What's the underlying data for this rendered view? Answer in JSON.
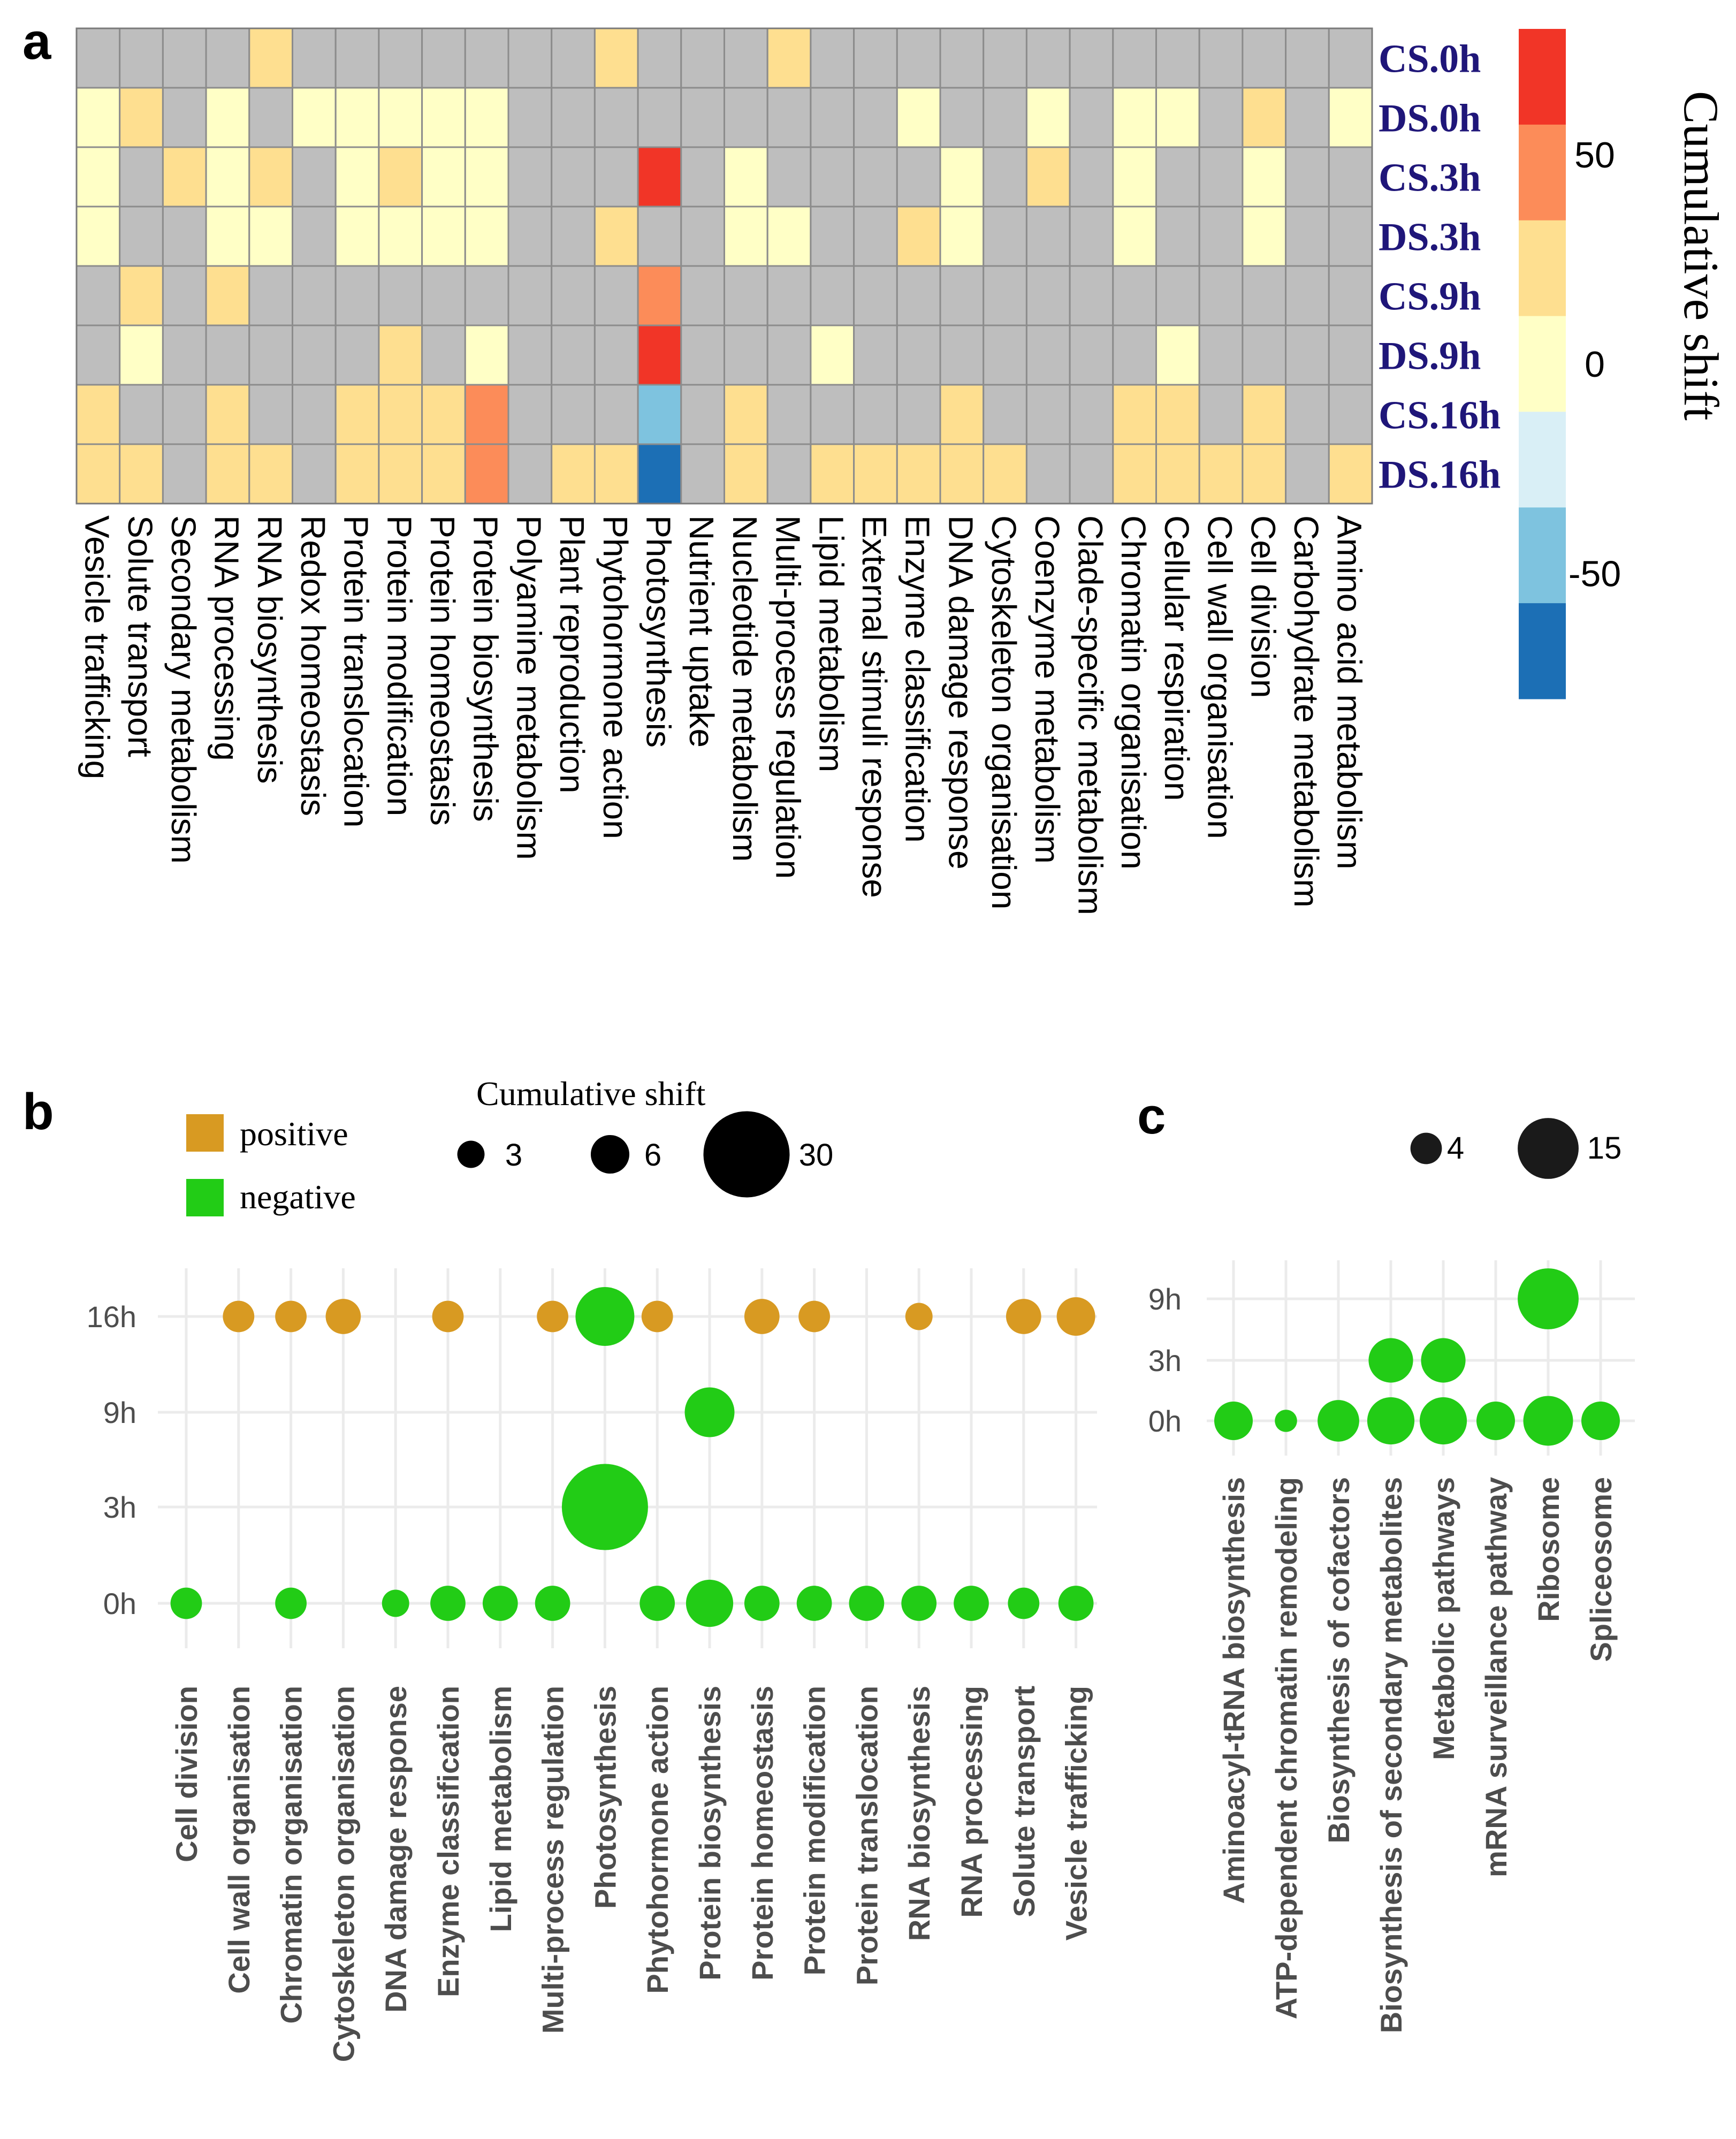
{
  "panels": {
    "a": "a",
    "b": "b",
    "c": "c"
  },
  "colors": {
    "grey": "#BEBEBE",
    "pos1": "#FFFFC6",
    "pos2": "#FEDF90",
    "pos3": "#FC8C59",
    "pos4": "#F13527",
    "neg1": "#D9EFF6",
    "neg2": "#7EC3DF",
    "neg3": "#1C6FB5",
    "positive": "#D89A22",
    "negative": "#22CC16",
    "row_label": "#1F1679",
    "grid": "#EBEBEB"
  },
  "chart_data": [
    {
      "id": "a",
      "type": "heatmap",
      "rows": [
        "CS.0h",
        "DS.0h",
        "CS.3h",
        "DS.3h",
        "CS.9h",
        "DS.9h",
        "CS.16h",
        "DS.16h"
      ],
      "columns": [
        "Vesicle trafficking",
        "Solute transport",
        "Secondary metabolism",
        "RNA processing",
        "RNA biosynthesis",
        "Redox homeostasis",
        "Protein translocation",
        "Protein modification",
        "Protein homeostasis",
        "Protein biosynthesis",
        "Polyamine metabolism",
        "Plant reproduction",
        "Phytohormone action",
        "Photosynthesis",
        "Nutrient uptake",
        "Nucleotide metabolism",
        "Multi-process regulation",
        "Lipid metabolism",
        "External stimuli response",
        "Enzyme classification",
        "DNA damage response",
        "Cytoskeleton organisation",
        "Coenzyme metabolism",
        "Clade-specific metabolism",
        "Chromatin organisation",
        "Cellular respiration",
        "Cell wall organisation",
        "Cell division",
        "Carbohydrate metabolism",
        "Amino acid metabolism"
      ],
      "value_bins": "0 = no value (grey); 1 = 0 to 20; 2 = 20 to 40; 3 = 40 to 60; 4 = 60 to 80; -1 = -20 to 0; -2 = -40 to -20; -3 = -60 to -40",
      "values": [
        [
          0,
          0,
          0,
          0,
          2,
          0,
          0,
          0,
          0,
          0,
          0,
          0,
          2,
          0,
          0,
          0,
          2,
          0,
          0,
          0,
          0,
          0,
          0,
          0,
          0,
          0,
          0,
          0,
          0,
          0
        ],
        [
          1,
          2,
          0,
          1,
          0,
          1,
          1,
          1,
          1,
          1,
          0,
          0,
          0,
          0,
          0,
          0,
          0,
          0,
          0,
          1,
          0,
          0,
          1,
          0,
          1,
          1,
          0,
          2,
          0,
          1
        ],
        [
          1,
          0,
          2,
          1,
          2,
          0,
          1,
          2,
          1,
          1,
          0,
          0,
          0,
          4,
          0,
          1,
          0,
          0,
          0,
          0,
          1,
          0,
          2,
          0,
          1,
          0,
          0,
          1,
          0,
          0
        ],
        [
          1,
          0,
          0,
          1,
          1,
          0,
          1,
          1,
          1,
          1,
          0,
          0,
          2,
          0,
          0,
          1,
          1,
          0,
          0,
          2,
          1,
          0,
          0,
          0,
          1,
          0,
          0,
          1,
          0,
          0
        ],
        [
          0,
          2,
          0,
          2,
          0,
          0,
          0,
          0,
          0,
          0,
          0,
          0,
          0,
          3,
          0,
          0,
          0,
          0,
          0,
          0,
          0,
          0,
          0,
          0,
          0,
          0,
          0,
          0,
          0,
          0
        ],
        [
          0,
          1,
          0,
          0,
          0,
          0,
          0,
          2,
          0,
          1,
          0,
          0,
          0,
          4,
          0,
          0,
          0,
          1,
          0,
          0,
          0,
          0,
          0,
          0,
          0,
          1,
          0,
          0,
          0,
          0
        ],
        [
          2,
          0,
          0,
          2,
          0,
          0,
          2,
          2,
          2,
          3,
          0,
          0,
          0,
          -2,
          0,
          2,
          0,
          0,
          0,
          0,
          2,
          0,
          0,
          0,
          2,
          2,
          0,
          2,
          0,
          0
        ],
        [
          2,
          2,
          0,
          2,
          2,
          0,
          2,
          2,
          2,
          3,
          0,
          2,
          2,
          -3,
          0,
          2,
          0,
          2,
          2,
          2,
          2,
          2,
          0,
          0,
          2,
          2,
          2,
          2,
          0,
          2
        ]
      ],
      "colorbar": {
        "title": "Cumulative shift",
        "range": [
          -80,
          80
        ],
        "ticks": [
          50,
          0,
          -50
        ],
        "tick_labels": [
          "50",
          "0",
          "-50"
        ]
      }
    },
    {
      "id": "b",
      "type": "scatter",
      "categories": [
        "Cell division",
        "Cell wall organisation",
        "Chromatin organisation",
        "Cytoskeleton organisation",
        "DNA damage response",
        "Enzyme classification",
        "Lipid metabolism",
        "Multi-process regulation",
        "Photosynthesis",
        "Phytohormone action",
        "Protein biosynthesis",
        "Protein homeostasis",
        "Protein modification",
        "Protein translocation",
        "RNA biosynthesis",
        "RNA processing",
        "Solute transport",
        "Vesicle trafficking"
      ],
      "y_levels": [
        "0h",
        "3h",
        "9h",
        "16h"
      ],
      "legend_title": "Cumulative shift",
      "legend_color_labels": [
        "positive",
        "negative"
      ],
      "size_legend": [
        {
          "value": 3,
          "label": "3"
        },
        {
          "value": 6,
          "label": "6"
        },
        {
          "value": 30,
          "label": "30"
        }
      ],
      "series": [
        {
          "name": "positive",
          "points": [
            {
              "x": "Cell wall organisation",
              "y": "16h",
              "size": 4
            },
            {
              "x": "Chromatin organisation",
              "y": "16h",
              "size": 4
            },
            {
              "x": "Cytoskeleton organisation",
              "y": "16h",
              "size": 5
            },
            {
              "x": "Enzyme classification",
              "y": "16h",
              "size": 4
            },
            {
              "x": "Multi-process regulation",
              "y": "16h",
              "size": 4
            },
            {
              "x": "Phytohormone action",
              "y": "16h",
              "size": 4
            },
            {
              "x": "Protein homeostasis",
              "y": "16h",
              "size": 5
            },
            {
              "x": "Protein modification",
              "y": "16h",
              "size": 4
            },
            {
              "x": "RNA biosynthesis",
              "y": "16h",
              "size": 3
            },
            {
              "x": "Solute transport",
              "y": "16h",
              "size": 5
            },
            {
              "x": "Vesicle trafficking",
              "y": "16h",
              "size": 6
            }
          ]
        },
        {
          "name": "negative",
          "points": [
            {
              "x": "Photosynthesis",
              "y": "16h",
              "size": 14
            },
            {
              "x": "Protein biosynthesis",
              "y": "9h",
              "size": 10
            },
            {
              "x": "Photosynthesis",
              "y": "3h",
              "size": 30
            },
            {
              "x": "Cell division",
              "y": "0h",
              "size": 4
            },
            {
              "x": "Chromatin organisation",
              "y": "0h",
              "size": 4
            },
            {
              "x": "DNA damage response",
              "y": "0h",
              "size": 3
            },
            {
              "x": "Enzyme classification",
              "y": "0h",
              "size": 5
            },
            {
              "x": "Lipid metabolism",
              "y": "0h",
              "size": 5
            },
            {
              "x": "Multi-process regulation",
              "y": "0h",
              "size": 5
            },
            {
              "x": "Phytohormone action",
              "y": "0h",
              "size": 5
            },
            {
              "x": "Protein biosynthesis",
              "y": "0h",
              "size": 9
            },
            {
              "x": "Protein homeostasis",
              "y": "0h",
              "size": 5
            },
            {
              "x": "Protein modification",
              "y": "0h",
              "size": 5
            },
            {
              "x": "Protein translocation",
              "y": "0h",
              "size": 5
            },
            {
              "x": "RNA biosynthesis",
              "y": "0h",
              "size": 5
            },
            {
              "x": "RNA processing",
              "y": "0h",
              "size": 5
            },
            {
              "x": "Solute transport",
              "y": "0h",
              "size": 4
            },
            {
              "x": "Vesicle trafficking",
              "y": "0h",
              "size": 5
            }
          ]
        }
      ]
    },
    {
      "id": "c",
      "type": "scatter",
      "categories": [
        "Aminoacyl-tRNA biosynthesis",
        "ATP-dependent chromatin remodeling",
        "Biosynthesis of cofactors",
        "Biosynthesis of secondary metabolites",
        "Metabolic pathways",
        "mRNA surveillance pathway",
        "Ribosome",
        "Spliceosome"
      ],
      "y_levels": [
        "0h",
        "3h",
        "9h"
      ],
      "size_legend": [
        {
          "value": 4,
          "label": "4"
        },
        {
          "value": 15,
          "label": "15"
        }
      ],
      "series": [
        {
          "name": "negative",
          "points": [
            {
              "x": "Ribosome",
              "y": "9h",
              "size": 15
            },
            {
              "x": "Biosynthesis of secondary metabolites",
              "y": "3h",
              "size": 8
            },
            {
              "x": "Metabolic pathways",
              "y": "3h",
              "size": 8
            },
            {
              "x": "Aminoacyl-tRNA biosynthesis",
              "y": "0h",
              "size": 6
            },
            {
              "x": "ATP-dependent chromatin remodeling",
              "y": "0h",
              "size": 2
            },
            {
              "x": "Biosynthesis of cofactors",
              "y": "0h",
              "size": 7
            },
            {
              "x": "Biosynthesis of secondary metabolites",
              "y": "0h",
              "size": 9
            },
            {
              "x": "Metabolic pathways",
              "y": "0h",
              "size": 9
            },
            {
              "x": "mRNA surveillance pathway",
              "y": "0h",
              "size": 6
            },
            {
              "x": "Ribosome",
              "y": "0h",
              "size": 10
            },
            {
              "x": "Spliceosome",
              "y": "0h",
              "size": 6
            }
          ]
        }
      ]
    }
  ]
}
